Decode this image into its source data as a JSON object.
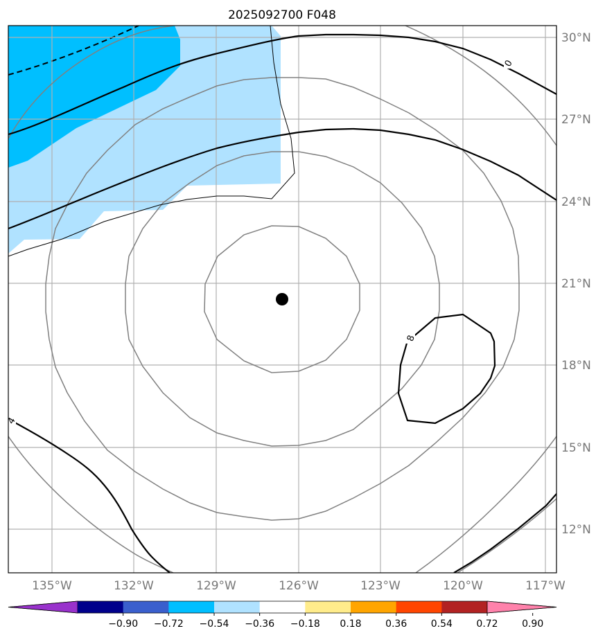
{
  "title": "2025092700 F048",
  "map": {
    "lon_range": [
      -137.0,
      -116.9
    ],
    "lat_range": [
      10.5,
      30.4
    ],
    "lat_ticks": [
      "30°N",
      "27°N",
      "24°N",
      "21°N",
      "18°N",
      "15°N",
      "12°N"
    ],
    "lon_ticks": [
      "135°W",
      "132°W",
      "129°W",
      "126°W",
      "123°W",
      "120°W",
      "117°W"
    ],
    "storm_center": {
      "lon": -126.6,
      "lat": 20.4
    },
    "contour_labels": [
      "0",
      "8",
      "4"
    ]
  },
  "colorbar": {
    "ticks": [
      "−0.90",
      "−0.72",
      "−0.54",
      "−0.36",
      "−0.18",
      "0.18",
      "0.36",
      "0.54",
      "0.72",
      "0.90"
    ],
    "colors": [
      "#9932cc",
      "#00008b",
      "#3a5fcd",
      "#00bfff",
      "#b0e2ff",
      "#ffffff",
      "#ffec8b",
      "#ffa500",
      "#ff4500",
      "#b22222",
      "#ff82ab"
    ]
  },
  "colors": {
    "light_blue": "#b0e2ff",
    "deep_sky_blue": "#00bfff",
    "grid": "#b0b0b0",
    "contour_gray": "#808080",
    "contour_black": "#000000"
  }
}
